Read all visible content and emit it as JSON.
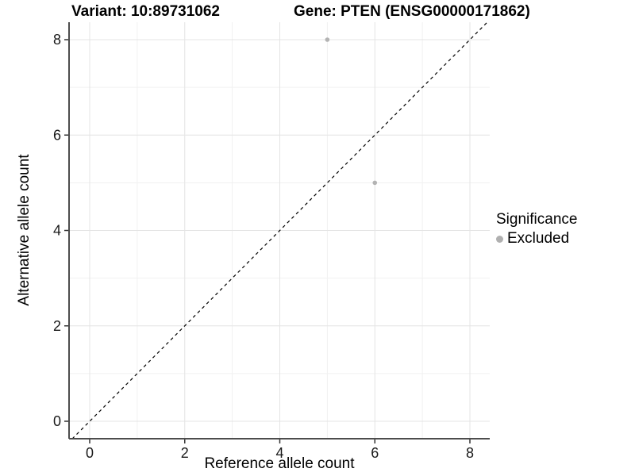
{
  "titles": {
    "variant": "Variant: 10:89731062",
    "gene": "Gene: PTEN (ENSG00000171862)"
  },
  "axes": {
    "x_label": "Reference allele count",
    "y_label": "Alternative allele count"
  },
  "legend": {
    "title": "Significance",
    "position": "right",
    "items": [
      {
        "label": "Excluded",
        "color": "#b0b0b0"
      }
    ]
  },
  "chart_data": {
    "type": "scatter",
    "title_left": "Variant: 10:89731062",
    "title_right": "Gene: PTEN (ENSG00000171862)",
    "xlabel": "Reference allele count",
    "ylabel": "Alternative allele count",
    "points": [
      {
        "x": 5,
        "y": 8,
        "significance": "Excluded"
      },
      {
        "x": 6,
        "y": 5,
        "significance": "Excluded"
      }
    ],
    "point_color": "#b3b3b3",
    "x_ticks": [
      0,
      2,
      4,
      6,
      8
    ],
    "y_ticks": [
      0,
      2,
      4,
      6,
      8
    ],
    "x_minor_ticks": [
      1,
      3,
      5,
      7
    ],
    "y_minor_ticks": [
      1,
      3,
      5,
      7
    ],
    "xlim": [
      -0.43,
      8.42
    ],
    "ylim": [
      -0.37,
      8.37
    ],
    "identity_line": {
      "style": "dashed",
      "slope": 1,
      "intercept": 0,
      "color": "#000000"
    },
    "grid": {
      "major_color": "#e4e4e4",
      "minor_color": "#f1f1f1",
      "background": "#ffffff"
    },
    "axis_line_color": "#4d4d4d",
    "tick_color": "#333333",
    "tick_label_color": "#1a1a1a",
    "legend_title": "Significance",
    "legend_entries": [
      "Excluded"
    ]
  }
}
